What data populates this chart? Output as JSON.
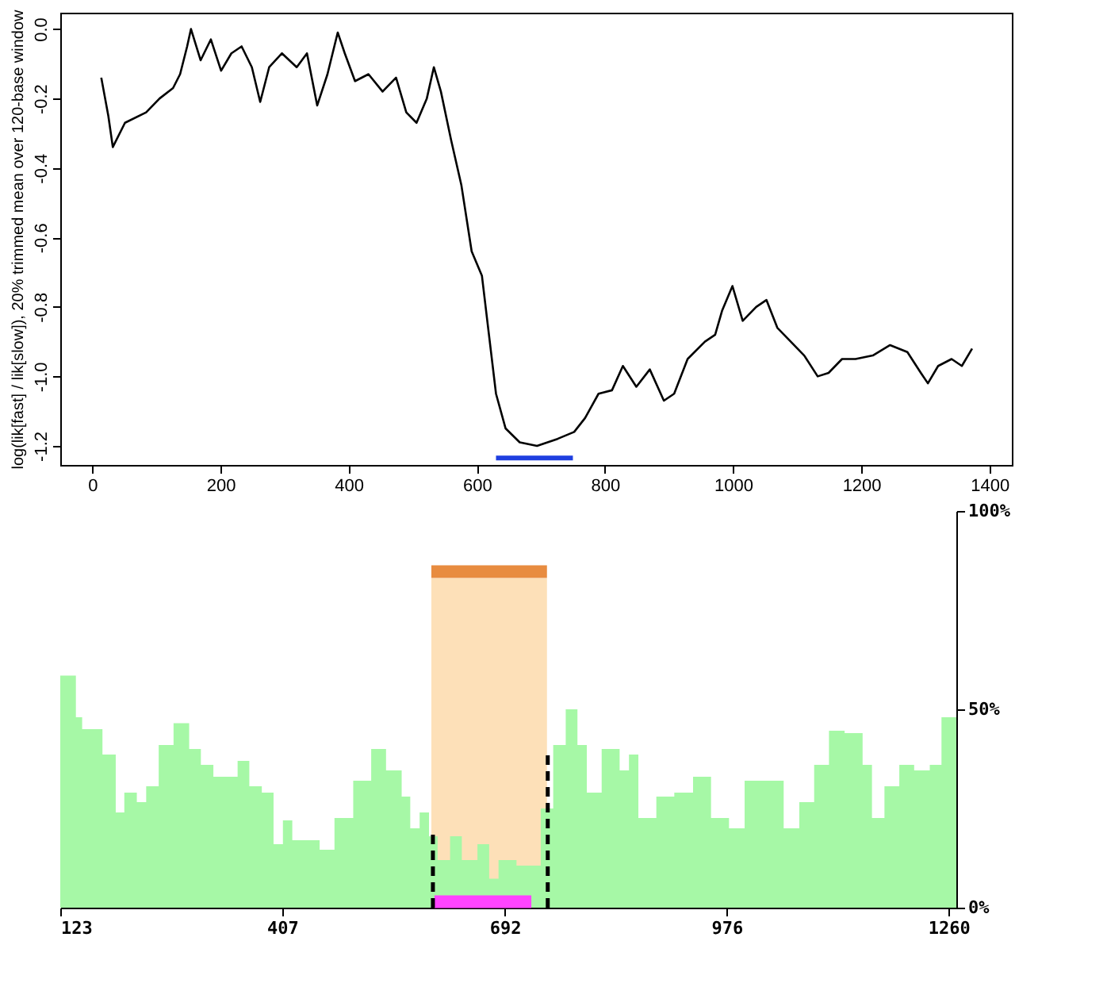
{
  "chart_data": [
    {
      "type": "line",
      "ylabel": "log(lik[fast] / lik[slow]), 20% trimmed mean over 120-base window",
      "xlim": [
        -50,
        1435
      ],
      "ylim": [
        -1.255,
        0.047
      ],
      "xticks": [
        0,
        200,
        400,
        600,
        800,
        1000,
        1200,
        1400
      ],
      "yticks": [
        {
          "value": 0,
          "label": "0.0"
        },
        -0.2,
        -0.4,
        -0.6,
        -0.8,
        {
          "value": -1,
          "label": "-1.0"
        },
        -1.2
      ],
      "grid": false,
      "series": [
        {
          "color": "#000000",
          "line_style": "solid",
          "x": [
            14,
            25,
            32,
            51,
            84,
            105,
            126,
            137,
            148,
            154,
            169,
            185,
            201,
            217,
            233,
            249,
            262,
            276,
            296,
            319,
            335,
            351,
            367,
            383,
            394,
            410,
            431,
            453,
            474,
            490,
            506,
            522,
            533,
            544,
            560,
            576,
            592,
            608,
            619,
            630,
            645,
            667,
            694,
            726,
            752,
            769,
            790,
            811,
            828,
            849,
            870,
            892,
            908,
            929,
            956,
            972,
            983,
            999,
            1015,
            1036,
            1052,
            1069,
            1090,
            1111,
            1132,
            1149,
            1170,
            1191,
            1218,
            1245,
            1272,
            1293,
            1304,
            1320,
            1341,
            1357,
            1373
          ],
          "values": [
            -0.14,
            -0.25,
            -0.34,
            -0.27,
            -0.24,
            -0.2,
            -0.17,
            -0.13,
            -0.05,
            0.0,
            -0.09,
            -0.03,
            -0.12,
            -0.07,
            -0.05,
            -0.11,
            -0.21,
            -0.11,
            -0.07,
            -0.11,
            -0.07,
            -0.22,
            -0.13,
            -0.01,
            -0.07,
            -0.15,
            -0.13,
            -0.18,
            -0.14,
            -0.24,
            -0.27,
            -0.2,
            -0.11,
            -0.18,
            -0.32,
            -0.45,
            -0.64,
            -0.71,
            -0.88,
            -1.05,
            -1.15,
            -1.19,
            -1.2,
            -1.18,
            -1.16,
            -1.12,
            -1.05,
            -1.04,
            -0.97,
            -1.03,
            -0.98,
            -1.07,
            -1.05,
            -0.95,
            -0.9,
            -0.88,
            -0.81,
            -0.74,
            -0.84,
            -0.8,
            -0.78,
            -0.86,
            -0.9,
            -0.94,
            -1.0,
            -0.99,
            -0.95,
            -0.95,
            -0.94,
            -0.91,
            -0.93,
            -0.99,
            -1.02,
            -0.97,
            -0.95,
            -0.97,
            -0.92
          ]
        },
        {
          "type": "line",
          "color": "#1f3fe0",
          "line_style": "solid",
          "x": [
            630,
            750
          ],
          "values": [
            -1.235,
            -1.235
          ]
        }
      ]
    },
    {
      "type": "area",
      "xlim": [
        123,
        1270
      ],
      "ylim": [
        0,
        100
      ],
      "xticks": [
        123,
        407,
        692,
        976,
        1260
      ],
      "yticks": [
        {
          "value": 0,
          "label": "0%"
        },
        {
          "value": 50,
          "label": "50%"
        },
        {
          "value": 100,
          "label": "100%"
        }
      ],
      "grid": false,
      "series": [
        {
          "type": "area",
          "color": "#fde0b8",
          "x": [
            598,
            746
          ],
          "values": [
            83,
            83
          ]
        },
        {
          "type": "line",
          "color": "#e88c40",
          "line_style": "solid",
          "x": [
            598,
            746
          ],
          "values": [
            84.7,
            84.7
          ]
        },
        {
          "type": "area",
          "color": "#a6f8a6",
          "x": [
            123,
            135,
            143,
            151,
            177,
            194,
            205,
            221,
            233,
            249,
            268,
            288,
            303,
            319,
            350,
            365,
            381,
            396,
            408,
            420,
            455,
            474,
            498,
            521,
            540,
            560,
            571,
            583,
            595,
            606,
            622,
            637,
            657,
            672,
            684,
            707,
            723,
            738,
            754,
            770,
            785,
            797,
            816,
            839,
            851,
            863,
            886,
            909,
            933,
            956,
            979,
            999,
            1026,
            1049,
            1069,
            1088,
            1107,
            1127,
            1150,
            1162,
            1178,
            1197,
            1216,
            1236,
            1251,
            1270
          ],
          "values": [
            58.5,
            58.5,
            48,
            45,
            38.6,
            24,
            29,
            26.6,
            30.6,
            41,
            46.5,
            40,
            36,
            33,
            37,
            30.6,
            29,
            16,
            22,
            17,
            14.6,
            22.6,
            32,
            40,
            34.6,
            28,
            20,
            24,
            18,
            12,
            18,
            12,
            16,
            7.3,
            12,
            10.6,
            10.6,
            25,
            41,
            50,
            41,
            29,
            40,
            34.6,
            38.6,
            22.6,
            28,
            29,
            33,
            22.6,
            20,
            32,
            32,
            20,
            26.6,
            36,
            44.6,
            44,
            36,
            22.6,
            30.6,
            36,
            34.6,
            36,
            48,
            68
          ]
        },
        {
          "type": "line",
          "color": "#ff44ff",
          "line_style": "solid",
          "x": [
            602,
            726
          ],
          "values": [
            1.5,
            1.5
          ]
        },
        {
          "type": "line",
          "color": "#000000",
          "line_style": "dashed",
          "x": [
            600,
            600
          ],
          "values": [
            0,
            18.6
          ]
        },
        {
          "type": "line",
          "color": "#000000",
          "line_style": "dashed",
          "x": [
            747,
            747
          ],
          "values": [
            0,
            38.6
          ]
        }
      ]
    }
  ]
}
